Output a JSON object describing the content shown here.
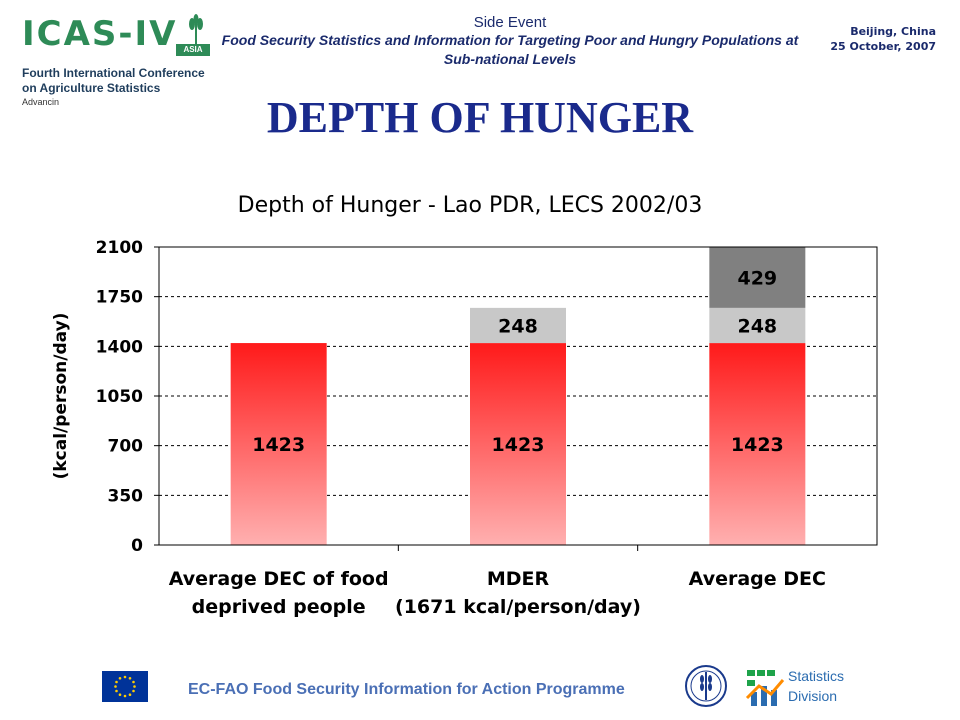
{
  "header": {
    "logo": {
      "letters": "ICAS-IV",
      "badge": "ASIA",
      "line1": "Fourth International Conference",
      "line2": "on Agriculture Statistics",
      "sub": "Advancin"
    },
    "event_label": "Side Event",
    "event_title": "Food Security Statistics and Information for Targeting Poor and Hungry Populations at Sub-national Levels",
    "location": "Beijing, China",
    "date": "25 October, 2007"
  },
  "slide_title": "DEPTH OF HUNGER",
  "chart_data": {
    "type": "bar",
    "stacked": true,
    "title": "Depth of Hunger - Lao PDR, LECS 2002/03",
    "ylabel": "(kcal/person/day)",
    "ylim": [
      0,
      2100
    ],
    "yticks": [
      0,
      350,
      700,
      1050,
      1400,
      1750,
      2100
    ],
    "grid": true,
    "categories": [
      [
        "Average DEC of food",
        "deprived people"
      ],
      [
        "MDER",
        "(1671 kcal/person/day)"
      ],
      [
        "Average DEC"
      ]
    ],
    "series": [
      {
        "values": [
          1423,
          1423,
          1423
        ],
        "labels": [
          "1423",
          "1423",
          "1423"
        ],
        "color": "#ff1a1a"
      },
      {
        "values": [
          0,
          248,
          248
        ],
        "labels": [
          "",
          "248",
          "248"
        ],
        "color": "#c8c8c8"
      },
      {
        "values": [
          0,
          0,
          429
        ],
        "labels": [
          "",
          "",
          "429"
        ],
        "color": "#808080"
      }
    ]
  },
  "footer": {
    "programme": "EC-FAO Food Security Information for Action Programme",
    "division_line1": "Statistics",
    "division_line2": "Division",
    "fao_logo": "fao-logo",
    "eu_flag": "eu-flag"
  }
}
